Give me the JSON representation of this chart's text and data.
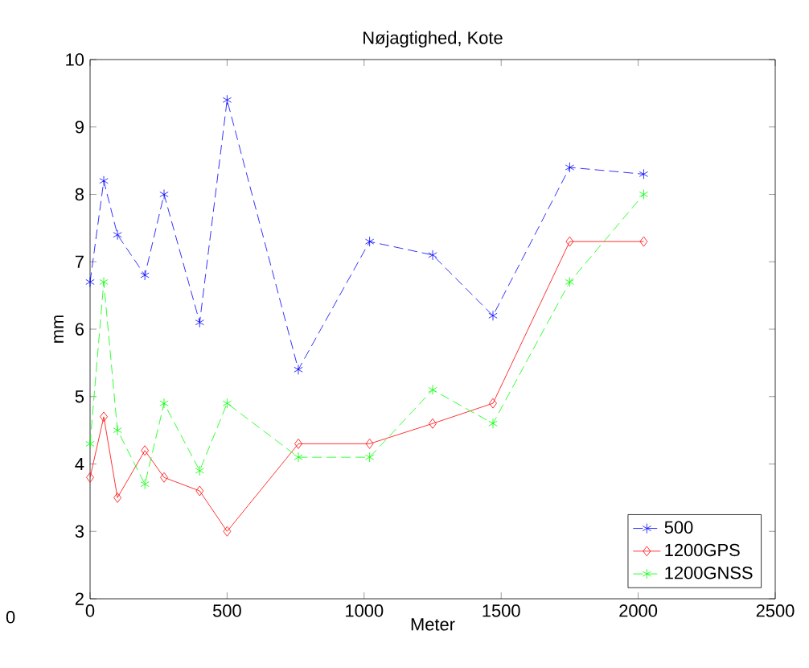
{
  "chart_data": {
    "type": "line",
    "title": "Nøjagtighed, Kote",
    "xlabel": "Meter",
    "ylabel": "mm",
    "x": [
      0,
      50,
      100,
      200,
      270,
      400,
      500,
      760,
      1020,
      1250,
      1470,
      1750,
      2020
    ],
    "series": [
      {
        "name": "500",
        "color": "#0000ff",
        "marker": "cross",
        "line_style": "dashed",
        "values": [
          6.7,
          8.2,
          7.4,
          6.8,
          8.0,
          6.1,
          9.4,
          5.4,
          7.3,
          7.1,
          6.2,
          8.4,
          8.3
        ]
      },
      {
        "name": "1200GPS",
        "color": "#ff0000",
        "marker": "diamond",
        "line_style": "solid",
        "values": [
          3.8,
          4.7,
          3.5,
          4.2,
          3.8,
          3.6,
          3.0,
          4.3,
          4.3,
          4.6,
          4.9,
          7.3,
          7.3
        ]
      },
      {
        "name": "1200GNSS",
        "color": "#00ff00",
        "marker": "cross",
        "line_style": "dashed",
        "values": [
          4.3,
          6.7,
          4.5,
          3.7,
          4.9,
          3.9,
          4.9,
          4.1,
          4.1,
          5.1,
          4.6,
          6.7,
          8.0
        ]
      }
    ],
    "xlim": [
      0,
      2500
    ],
    "xticks": [
      0,
      500,
      1000,
      1500,
      2000,
      2500
    ],
    "ylim": [
      2,
      10
    ],
    "yticks": [
      2,
      3,
      4,
      5,
      6,
      7,
      8,
      9,
      10
    ],
    "grid": false,
    "legend": "bottom right",
    "annotations": [
      "0"
    ]
  }
}
